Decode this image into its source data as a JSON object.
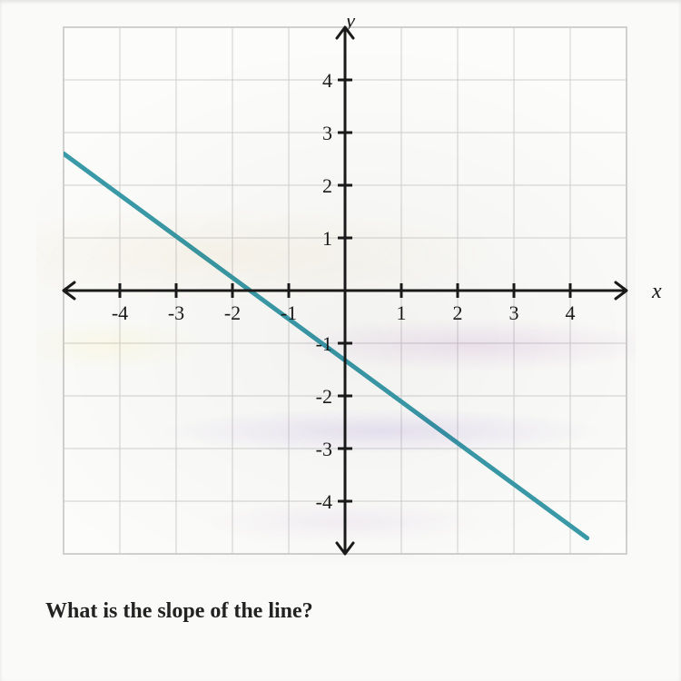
{
  "chart": {
    "type": "line",
    "xlim": [
      -5,
      5
    ],
    "ylim": [
      -5,
      5
    ],
    "xtick_min": -4,
    "xtick_max": 4,
    "xtick_step": 1,
    "ytick_min": -4,
    "ytick_max": 4,
    "ytick_step": 1,
    "grid_color": "#d0d0d0",
    "axis_color": "#1a1a1a",
    "axis_width": 3,
    "tick_length": 8,
    "tick_width": 3,
    "grid_width": 1,
    "background_color": "#fcfcfa",
    "panel_border_color": "#cfcfcf",
    "line": {
      "x1": -5,
      "y1": 2.6,
      "x2": 4.3,
      "y2": -4.7,
      "color": "#3a9aa8",
      "width": 5
    },
    "axis_labels": {
      "x": "x",
      "y": "y"
    },
    "tick_label_color": "#1a1a1a",
    "tick_label_fontsize": 22,
    "tick_label_family": "Georgia, serif",
    "axis_label_fontsize": 24
  },
  "question": "What is the slope of the line?"
}
